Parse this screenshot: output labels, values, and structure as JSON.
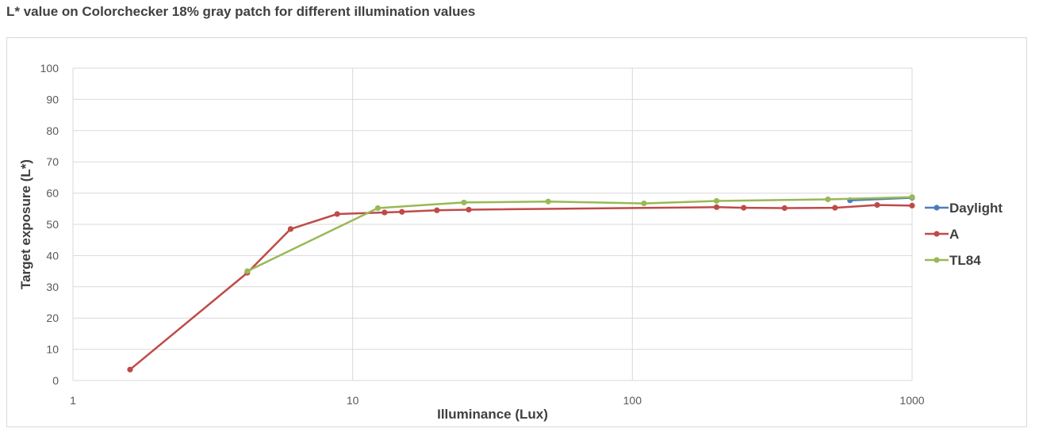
{
  "chart_data": {
    "type": "line",
    "title": "L* value on Colorchecker 18% gray patch for different illumination values",
    "xlabel": "Illuminance (Lux)",
    "ylabel": "Target exposure (L*)",
    "x_scale": "log",
    "xlim": [
      1,
      1000
    ],
    "ylim": [
      0,
      100
    ],
    "x_ticks": [
      1,
      10,
      100,
      1000
    ],
    "x_tick_labels": [
      "1",
      "10",
      "100",
      "1000"
    ],
    "y_ticks": [
      0,
      10,
      20,
      30,
      40,
      50,
      60,
      70,
      80,
      90,
      100
    ],
    "y_tick_labels": [
      "0",
      "10",
      "20",
      "30",
      "40",
      "50",
      "60",
      "70",
      "80",
      "90",
      "100"
    ],
    "grid": true,
    "legend_position": "right",
    "series": [
      {
        "name": "Daylight",
        "color": "#4a7ebb",
        "points": [
          [
            600,
            57.7
          ],
          [
            1000,
            58.5
          ]
        ]
      },
      {
        "name": "A",
        "color": "#be4b48",
        "points": [
          [
            1.6,
            3.5
          ],
          [
            4.2,
            34.5
          ],
          [
            6,
            48.5
          ],
          [
            8.8,
            53.3
          ],
          [
            13,
            53.8
          ],
          [
            15,
            54
          ],
          [
            20,
            54.5
          ],
          [
            26,
            54.7
          ],
          [
            200,
            55.5
          ],
          [
            250,
            55.3
          ],
          [
            350,
            55.2
          ],
          [
            530,
            55.3
          ],
          [
            750,
            56.2
          ],
          [
            1000,
            56
          ]
        ]
      },
      {
        "name": "TL84",
        "color": "#98b954",
        "points": [
          [
            4.2,
            35
          ],
          [
            12.3,
            55.2
          ],
          [
            25,
            57
          ],
          [
            50,
            57.3
          ],
          [
            110,
            56.7
          ],
          [
            200,
            57.5
          ],
          [
            500,
            58
          ],
          [
            1000,
            58.7
          ]
        ]
      }
    ]
  }
}
